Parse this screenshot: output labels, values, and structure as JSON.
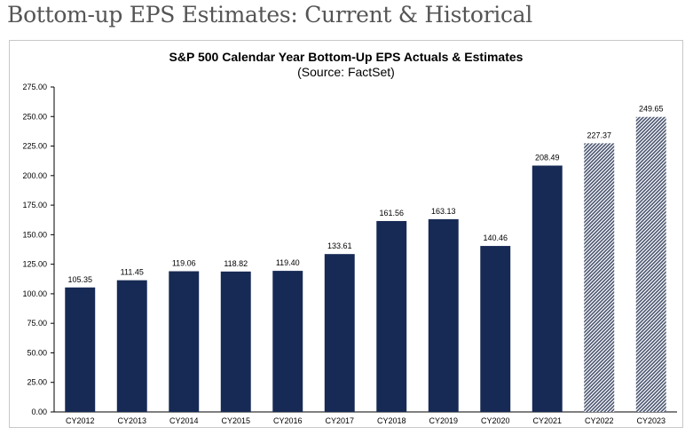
{
  "page": {
    "heading": "Bottom-up EPS Estimates: Current & Historical"
  },
  "colors": {
    "actual_bar": "#172a55",
    "estimate_bar_pattern": "#4a5570",
    "axis": "#000000",
    "text": "#000000"
  },
  "chart_data": {
    "type": "bar",
    "title": "S&P 500 Calendar Year Bottom-Up EPS Actuals & Estimates",
    "subtitle": "(Source: FactSet)",
    "xlabel": "",
    "ylabel": "",
    "ylim": [
      0,
      275
    ],
    "yticks": [
      "0.00",
      "25.00",
      "50.00",
      "75.00",
      "100.00",
      "125.00",
      "150.00",
      "175.00",
      "200.00",
      "225.00",
      "250.00",
      "275.00"
    ],
    "grid": false,
    "legend": "none",
    "categories": [
      "CY2012",
      "CY2013",
      "CY2014",
      "CY2015",
      "CY2016",
      "CY2017",
      "CY2018",
      "CY2019",
      "CY2020",
      "CY2021",
      "CY2022",
      "CY2023"
    ],
    "values": [
      105.35,
      111.45,
      119.06,
      118.82,
      119.4,
      133.61,
      161.56,
      163.13,
      140.46,
      208.49,
      227.37,
      249.65
    ],
    "value_labels": [
      "105.35",
      "111.45",
      "119.06",
      "118.82",
      "119.40",
      "133.61",
      "161.56",
      "163.13",
      "140.46",
      "208.49",
      "227.37",
      "249.65"
    ],
    "bar_kind": [
      "actual",
      "actual",
      "actual",
      "actual",
      "actual",
      "actual",
      "actual",
      "actual",
      "actual",
      "actual",
      "estimate",
      "estimate"
    ]
  }
}
